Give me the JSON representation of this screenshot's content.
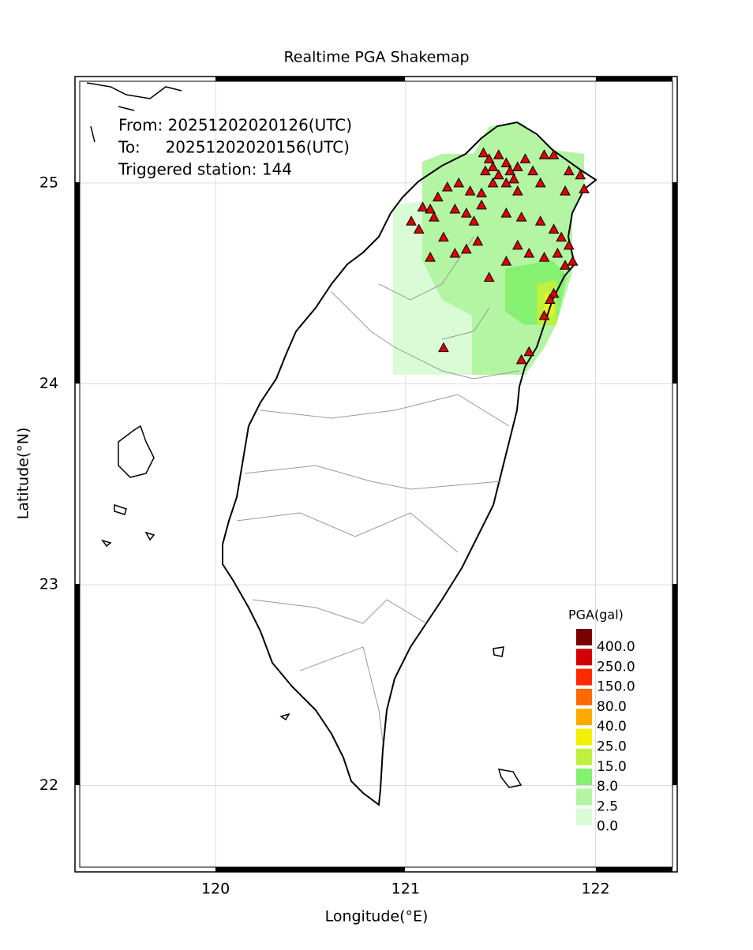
{
  "chart_data": {
    "type": "map",
    "title": "Realtime PGA Shakemap",
    "info": [
      "From: 20251202020126(UTC)",
      "To:     20251202020156(UTC)",
      "Triggered station: 144"
    ],
    "x_label": "Longitude(°E)",
    "y_label": "Latitude(°N)",
    "xlim": [
      119.26,
      122.43
    ],
    "ylim": [
      21.57,
      25.53
    ],
    "xticks": [
      120,
      121,
      122
    ],
    "yticks": [
      22,
      23,
      24,
      25
    ],
    "grid": true,
    "legend": {
      "title": "PGA(gal)",
      "ticks": [
        {
          "value": 400,
          "label": "400.0"
        },
        {
          "value": 250,
          "label": "250.0"
        },
        {
          "value": 150,
          "label": "150.0"
        },
        {
          "value": 80,
          "label": "80.0"
        },
        {
          "value": 40,
          "label": "40.0"
        },
        {
          "value": 25,
          "label": "25.0"
        },
        {
          "value": 15,
          "label": "15.0"
        },
        {
          "value": 8,
          "label": "8.0"
        },
        2.5,
        {
          "value": 0,
          "label": "0.0"
        }
      ],
      "colors": [
        "#7a0000",
        "#d40000",
        "#ff2a00",
        "#ff6a00",
        "#ffaa00",
        "#f0f000",
        "#bff03c",
        "#86f070",
        "#b3f5a3",
        "#d9fcd6"
      ]
    },
    "stations": {
      "color": "#e00000",
      "lon": [
        121.41,
        121.44,
        121.49,
        121.53,
        121.46,
        121.42,
        121.49,
        121.55,
        121.59,
        121.63,
        121.67,
        121.73,
        121.78,
        121.86,
        121.92,
        121.94,
        121.84,
        121.71,
        121.59,
        121.46,
        121.4,
        121.34,
        121.28,
        121.22,
        121.17,
        121.13,
        121.09,
        121.03,
        121.07,
        121.15,
        121.2,
        121.26,
        121.32,
        121.36,
        121.4,
        121.53,
        121.61,
        121.71,
        121.78,
        121.82,
        121.86,
        121.8,
        121.73,
        121.65,
        121.59,
        121.53,
        121.38,
        121.32,
        121.26,
        121.13,
        121.44,
        121.78,
        121.76,
        121.73,
        121.84,
        121.88,
        121.65,
        121.61,
        121.2,
        121.53,
        121.57
      ],
      "lat": [
        25.15,
        25.12,
        25.14,
        25.1,
        25.08,
        25.06,
        25.04,
        25.06,
        25.08,
        25.12,
        25.06,
        25.14,
        25.14,
        25.06,
        25.04,
        24.97,
        24.96,
        25.0,
        24.96,
        25.0,
        24.95,
        24.96,
        25.0,
        24.98,
        24.93,
        24.87,
        24.88,
        24.81,
        24.77,
        24.83,
        24.73,
        24.87,
        24.85,
        24.81,
        24.89,
        24.85,
        24.83,
        24.81,
        24.77,
        24.73,
        24.69,
        24.65,
        24.63,
        24.65,
        24.69,
        24.61,
        24.71,
        24.67,
        24.65,
        24.63,
        24.53,
        24.45,
        24.42,
        24.34,
        24.59,
        24.61,
        24.16,
        24.12,
        24.18,
        25.0,
        25.02
      ]
    }
  }
}
